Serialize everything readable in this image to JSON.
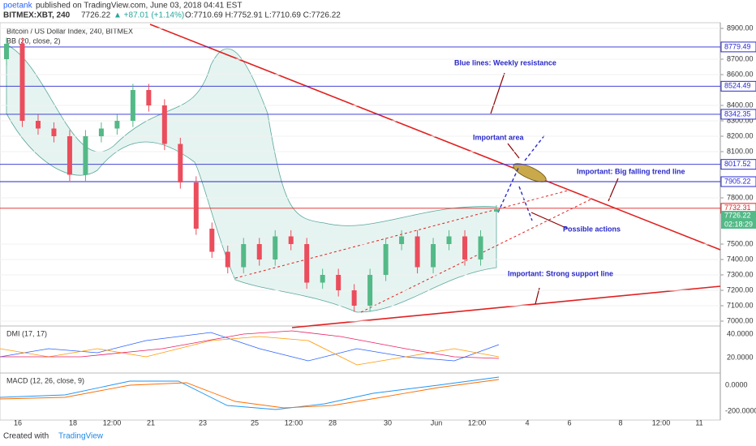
{
  "header": {
    "author": "poetank",
    "published": "published on TradingView.com, June 03, 2018 04:41 EST",
    "symbol": "BITMEX:XBT, 240",
    "last": "7726.22",
    "change": "▲ +87.01 (+1.14%)",
    "ohlc": "O:7710.69 H:7752.91 L:7710.69 C:7726.22"
  },
  "legend": {
    "main": "Bitcoin / US Dollar Index, 240, BITMEX",
    "bb": "BB (20, close, 2)",
    "dmi": "DMI (17, 17)",
    "macd": "MACD (12, 26, close, 9)"
  },
  "chart_data": {
    "type": "candlestick",
    "open": [
      8700,
      8800,
      8300,
      8250,
      8200,
      7950,
      8200,
      8250,
      8300,
      8500,
      8400,
      8150,
      7900,
      7600,
      7450,
      7350,
      7500,
      7400,
      7550,
      7500,
      7250,
      7300,
      7200,
      7100,
      7300,
      7500,
      7550,
      7350,
      7500,
      7550,
      7400,
      7710.69
    ],
    "high": [
      8840,
      8840,
      8340,
      8290,
      8240,
      8240,
      8290,
      8340,
      8540,
      8540,
      8440,
      8190,
      7940,
      7640,
      7490,
      7540,
      7540,
      7590,
      7590,
      7540,
      7340,
      7340,
      7240,
      7340,
      7540,
      7590,
      7590,
      7540,
      7590,
      7590,
      7590,
      7752.91
    ],
    "low": [
      8660,
      8260,
      8210,
      8160,
      7910,
      7910,
      8160,
      8210,
      8260,
      8360,
      8110,
      7860,
      7560,
      7410,
      7310,
      7310,
      7360,
      7360,
      7460,
      7210,
      7210,
      7160,
      7060,
      7060,
      7260,
      7460,
      7310,
      7310,
      7460,
      7360,
      7360,
      7710.69
    ],
    "close": [
      8800,
      8300,
      8250,
      8200,
      7950,
      8200,
      8250,
      8300,
      8500,
      8400,
      8150,
      7900,
      7600,
      7450,
      7350,
      7500,
      7400,
      7550,
      7500,
      7250,
      7300,
      7200,
      7100,
      7300,
      7500,
      7550,
      7350,
      7500,
      7550,
      7400,
      7550,
      7726.22
    ],
    "up_color": "#53b987",
    "down_color": "#eb4d5c",
    "ylim": [
      7000,
      8900
    ],
    "yticks": [
      {
        "value": 8900,
        "label": "8900.00"
      },
      {
        "value": 8700,
        "label": "8700.00"
      },
      {
        "value": 8600,
        "label": "8600.00"
      },
      {
        "value": 8400,
        "label": "8400.00"
      },
      {
        "value": 8300,
        "label": "8300.00"
      },
      {
        "value": 8200,
        "label": "8200.00"
      },
      {
        "value": 8100,
        "label": "8100.00"
      },
      {
        "value": 7800,
        "label": "7800.00"
      },
      {
        "value": 7500,
        "label": "7500.00"
      },
      {
        "value": 7400,
        "label": "7400.00"
      },
      {
        "value": 7300,
        "label": "7300.00"
      },
      {
        "value": 7200,
        "label": "7200.00"
      },
      {
        "value": 7100,
        "label": "7100.00"
      },
      {
        "value": 7000,
        "label": "7000.00"
      }
    ],
    "levels": [
      {
        "value": 8779.49,
        "color": "#2a2ad0"
      },
      {
        "value": 8524.49,
        "color": "#2a2ad0"
      },
      {
        "value": 8342.35,
        "color": "#2a2ad0"
      },
      {
        "value": 8017.52,
        "color": "#2a2ad0"
      },
      {
        "value": 7905.22,
        "color": "#2a2ad0"
      },
      {
        "value": 7732.31,
        "color": "#e02020"
      }
    ],
    "last_price": 7726.22,
    "countdown": "02:18:29",
    "x_labels": [
      "16",
      "18",
      "12:00",
      "21",
      "23",
      "25",
      "12:00",
      "28",
      "30",
      "Jun",
      "12:00",
      "4",
      "6",
      "8",
      "12:00",
      "11"
    ],
    "annotations": [
      "Blue lines: Weekly resistance",
      "Important area",
      "Important: Big falling trend line",
      "Possible actions",
      "Important: Strong support line"
    ],
    "dmi_ticks": [
      "40.0000",
      "20.0000"
    ],
    "macd_ticks": [
      "0.0000",
      "-200.0000"
    ]
  },
  "footer": {
    "created": "Created with",
    "brand": "TradingView"
  }
}
